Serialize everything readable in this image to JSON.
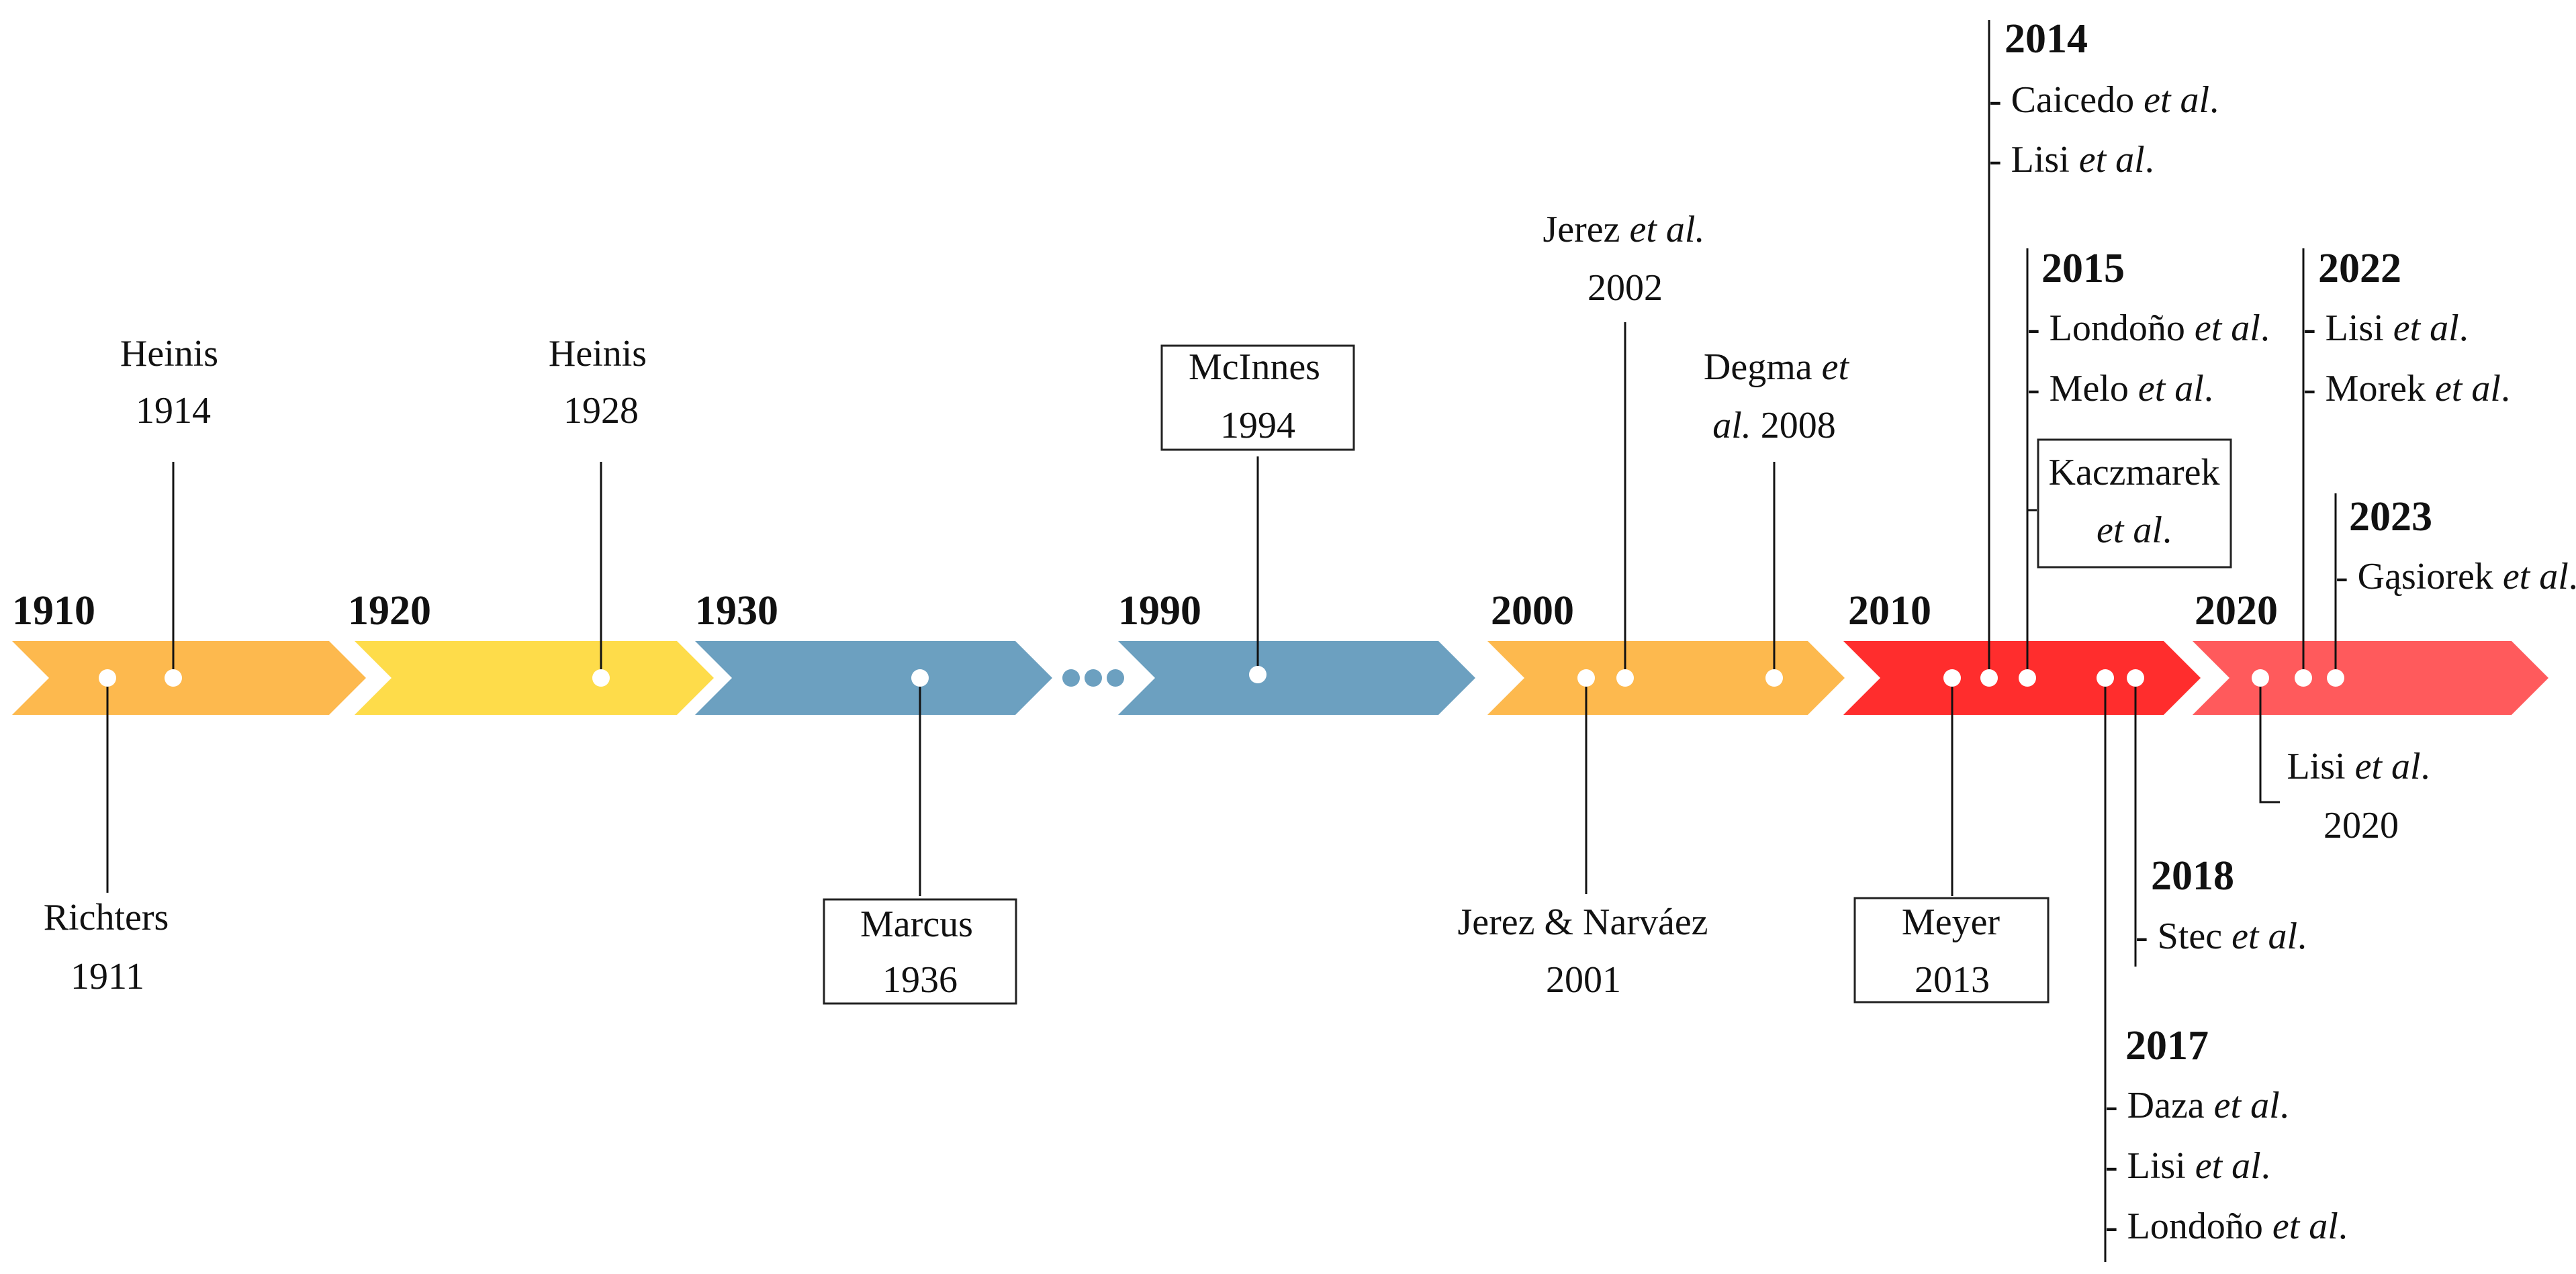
{
  "decades": [
    {
      "label": "1910",
      "color": "#FDB94E"
    },
    {
      "label": "1920",
      "color": "#FEDC4A"
    },
    {
      "label": "1930",
      "color": "#6CA0C0"
    },
    {
      "label": "1990",
      "color": "#6CA0C0"
    },
    {
      "label": "2000",
      "color": "#FDB94E"
    },
    {
      "label": "2010",
      "color": "#FF2D2D"
    },
    {
      "label": "2020",
      "color": "#FF5A5C"
    }
  ],
  "events": {
    "heinis_1914": {
      "name": "Heinis",
      "year": "1914"
    },
    "richters_1911": {
      "name": "Richters",
      "year": "1911"
    },
    "heinis_1928": {
      "name": "Heinis",
      "year": "1928"
    },
    "marcus_1936": {
      "name": "Marcus",
      "year": "1936"
    },
    "mcinnes_1994": {
      "name": "McInnes",
      "year": "1994"
    },
    "jerez_2002": {
      "name": "Jerez ",
      "etal": "et al.",
      "year": "2002"
    },
    "degma_2008": {
      "name": "Degma ",
      "et": "et",
      "al": "al.",
      "year": " 2008"
    },
    "jerez_narvaez_2001": {
      "name": "Jerez & Narváez",
      "year": "2001"
    },
    "meyer_2013": {
      "name": "Meyer",
      "year": "2013"
    },
    "group_2014": {
      "year": "2014",
      "items": [
        {
          "name": "- Caicedo ",
          "etal": "et al",
          "tail": "."
        },
        {
          "name": "- Lisi ",
          "etal": "et al",
          "tail": "."
        }
      ]
    },
    "group_2015": {
      "year": "2015",
      "items": [
        {
          "name": "- Londoño ",
          "etal": "et al",
          "tail": "."
        },
        {
          "name": "- Melo ",
          "etal": "et al",
          "tail": "."
        }
      ]
    },
    "kaczmarek": {
      "name": "Kaczmarek",
      "etal": "et al",
      "tail": "."
    },
    "group_2018": {
      "year": "2018",
      "items": [
        {
          "name": "- Stec ",
          "etal": "et al",
          "tail": "."
        }
      ]
    },
    "group_2017": {
      "year": "2017",
      "items": [
        {
          "name": "- Daza ",
          "etal": "et al",
          "tail": "."
        },
        {
          "name": "- Lisi ",
          "etal": "et al",
          "tail": "."
        },
        {
          "name": "- Londoño ",
          "etal": "et al",
          "tail": "."
        }
      ]
    },
    "group_2022": {
      "year": "2022",
      "items": [
        {
          "name": "- Lisi ",
          "etal": "et al",
          "tail": "."
        },
        {
          "name": "- Morek ",
          "etal": "et al",
          "tail": "."
        }
      ]
    },
    "group_2023": {
      "year": "2023",
      "items": [
        {
          "name": "- Gąsiorek ",
          "etal": "et al",
          "tail": "."
        }
      ]
    },
    "lisi_2020": {
      "name": "Lisi ",
      "etal": "et al",
      "tail": ".",
      "year": "2020"
    }
  }
}
